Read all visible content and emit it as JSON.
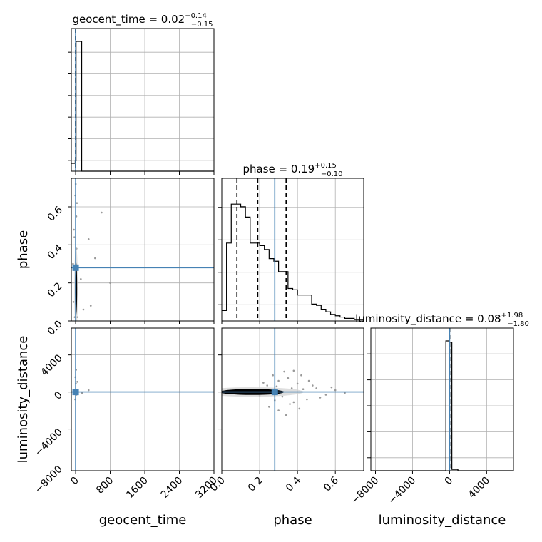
{
  "chart_data": {
    "type": "corner",
    "color_truth": "#4682b4",
    "color_hist": "#000000",
    "grid": true,
    "parameters": [
      {
        "name": "geocent_time",
        "label": "geocent_time",
        "range": [
          -100,
          3200
        ],
        "ticks": [
          0,
          800,
          1600,
          2400,
          3200
        ],
        "ticklabels": [
          "0",
          "800",
          "1600",
          "2400",
          "3200"
        ],
        "truth": 0.0,
        "title": {
          "param": "geocent_time",
          "median": "0.02",
          "plus": "+0.14",
          "minus": "−0.15"
        },
        "quantiles": [
          -0.13,
          0.02,
          0.16
        ]
      },
      {
        "name": "phase",
        "label": "phase",
        "range": [
          0.0,
          0.75
        ],
        "ticks": [
          0.0,
          0.2,
          0.4,
          0.6
        ],
        "ticklabels": [
          "0.0",
          "0.2",
          "0.4",
          "0.6"
        ],
        "truth": 0.28,
        "title": {
          "param": "phase",
          "median": "0.19",
          "plus": "+0.15",
          "minus": "−0.10"
        },
        "quantiles": [
          0.08,
          0.19,
          0.34
        ]
      },
      {
        "name": "luminosity_distance",
        "label": "luminosity_distance",
        "range": [
          -8500,
          6900
        ],
        "ticks": [
          -8000,
          -4000,
          0,
          4000
        ],
        "ticklabels": [
          "−8000",
          "−4000",
          "0",
          "4000"
        ],
        "truth": 0.0,
        "title": {
          "param": "luminosity_distance",
          "median": "0.08",
          "plus": "+1.98",
          "minus": "−1.80"
        },
        "quantiles": [
          -1.72,
          0.08,
          2.06
        ]
      }
    ],
    "histograms": {
      "geocent_time": {
        "edges": [
          -100,
          -10,
          10,
          140,
          3200
        ],
        "counts": [
          0.06,
          0.08,
          1.0,
          0.0
        ]
      },
      "phase": {
        "edges": [
          0.0,
          0.025,
          0.05,
          0.075,
          0.1,
          0.125,
          0.15,
          0.175,
          0.2,
          0.225,
          0.25,
          0.275,
          0.3,
          0.325,
          0.35,
          0.375,
          0.4,
          0.425,
          0.45,
          0.475,
          0.5,
          0.525,
          0.55,
          0.575,
          0.6,
          0.625,
          0.65,
          0.675,
          0.7,
          0.725,
          0.75
        ],
        "counts": [
          0.08,
          0.6,
          0.9,
          0.9,
          0.88,
          0.8,
          0.6,
          0.6,
          0.58,
          0.55,
          0.48,
          0.46,
          0.38,
          0.38,
          0.25,
          0.24,
          0.2,
          0.2,
          0.2,
          0.13,
          0.12,
          0.09,
          0.07,
          0.05,
          0.04,
          0.03,
          0.02,
          0.02,
          0.01,
          0.01
        ]
      },
      "luminosity_distance": {
        "edges": [
          -8500,
          -400,
          0,
          250,
          900,
          6900
        ],
        "counts": [
          0.0,
          1.0,
          0.99,
          0.01,
          0.0
        ]
      }
    },
    "ytick_counts": {
      "geocent_time": 6,
      "phase": 4,
      "luminosity_distance": 5
    },
    "scatter": {
      "phase_vs_geocent_time": [
        [
          2,
          0.72
        ],
        [
          -8,
          0.66
        ],
        [
          15,
          0.55
        ],
        [
          30,
          0.62
        ],
        [
          600,
          0.57
        ],
        [
          300,
          0.43
        ],
        [
          -30,
          0.44
        ],
        [
          450,
          0.33
        ],
        [
          350,
          0.08
        ],
        [
          -50,
          0.1
        ],
        [
          20,
          0.38
        ],
        [
          -20,
          0.02
        ],
        [
          40,
          0.02
        ],
        [
          120,
          0.22
        ],
        [
          -60,
          0.3
        ],
        [
          800,
          0.2
        ],
        [
          180,
          0.06
        ],
        [
          -40,
          0.48
        ]
      ],
      "luminosity_distance_vs_geocent_time": [
        [
          -5,
          1600
        ],
        [
          10,
          2400
        ],
        [
          5,
          900
        ],
        [
          -10,
          -800
        ],
        [
          20,
          -300
        ],
        [
          300,
          200
        ],
        [
          150,
          -100
        ],
        [
          40,
          1100
        ]
      ],
      "luminosity_distance_vs_phase": [
        [
          0.3,
          1200
        ],
        [
          0.35,
          1500
        ],
        [
          0.28,
          -900
        ],
        [
          0.33,
          2200
        ],
        [
          0.25,
          -1600
        ],
        [
          0.4,
          900
        ],
        [
          0.45,
          -800
        ],
        [
          0.38,
          -1100
        ],
        [
          0.5,
          400
        ],
        [
          0.55,
          -300
        ],
        [
          0.42,
          1800
        ],
        [
          0.3,
          -2000
        ],
        [
          0.22,
          1000
        ],
        [
          0.6,
          200
        ],
        [
          0.36,
          -1300
        ],
        [
          0.48,
          700
        ],
        [
          0.27,
          1800
        ],
        [
          0.32,
          -500
        ],
        [
          0.43,
          300
        ],
        [
          0.65,
          -100
        ],
        [
          0.2,
          -400
        ],
        [
          0.38,
          2300
        ],
        [
          0.34,
          -2500
        ],
        [
          0.52,
          -600
        ],
        [
          0.46,
          1200
        ],
        [
          0.29,
          600
        ],
        [
          0.41,
          -1800
        ],
        [
          0.58,
          500
        ],
        [
          0.24,
          700
        ],
        [
          0.37,
          400
        ]
      ]
    },
    "contours": {
      "phase_vs_geocent_time": {
        "cx": 10,
        "cy": 0.17,
        "rx": 25,
        "ry": 0.14
      },
      "luminosity_distance_vs_geocent_time": {
        "cx": 10,
        "cy": 0,
        "rx": 35,
        "ry": 230
      },
      "luminosity_distance_vs_phase": {
        "cx": 0.16,
        "cy": 0,
        "rx": 0.17,
        "ry": 320
      }
    },
    "truth_markers": {
      "phase_vs_geocent_time": [
        0,
        0.28
      ],
      "luminosity_distance_vs_geocent_time": [
        0,
        0
      ],
      "luminosity_distance_vs_phase": [
        0.28,
        0
      ]
    }
  }
}
